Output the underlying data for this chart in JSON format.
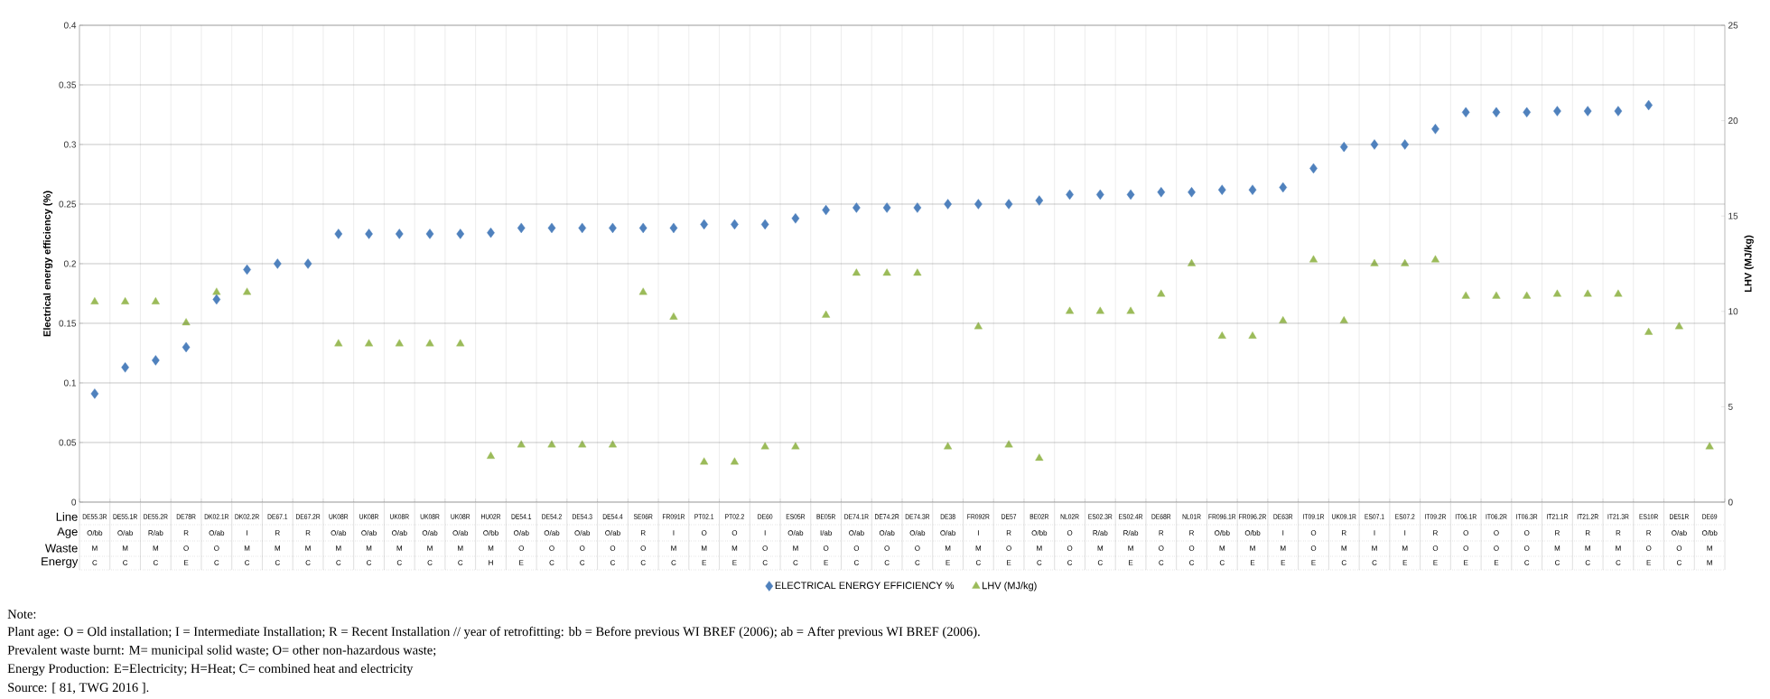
{
  "chart_data": {
    "type": "scatter",
    "categories": [
      "DE55.3R",
      "DE55.1R",
      "DE55.2R",
      "DE78R",
      "DK02.1R",
      "DK02.2R",
      "DE67.1",
      "DE67.2R",
      "UK08R",
      "UK08R",
      "UK08R",
      "UK08R",
      "UK08R",
      "HU02R",
      "DE54.1",
      "DE54.2",
      "DE54.3",
      "DE54.4",
      "SE06R",
      "FR091R",
      "PT02.1",
      "PT02.2",
      "DE60",
      "ES05R",
      "BE05R",
      "DE74.1R",
      "DE74.2R",
      "DE74.3R",
      "DE38",
      "FR092R",
      "DE57",
      "BE02R",
      "NL02R",
      "ES02.3R",
      "ES02.4R",
      "DE68R",
      "NL01R",
      "FR096.1R",
      "FR096.2R",
      "DE63R",
      "IT09.1R",
      "UK09.1R",
      "ES07.1",
      "ES07.2",
      "IT09.2R",
      "IT06.1R",
      "IT06.2R",
      "IT06.3R",
      "IT21.1R",
      "IT21.2R",
      "IT21.3R",
      "ES10R",
      "DE51R",
      "DE69"
    ],
    "series": [
      {
        "name": "ELECTRICAL ENERGY EFFICIENCY %",
        "color": "#4f81bd",
        "marker": "diamond",
        "values": [
          0.091,
          0.113,
          0.119,
          0.13,
          0.17,
          0.195,
          0.2,
          0.2,
          0.225,
          0.225,
          0.225,
          0.225,
          0.225,
          0.226,
          0.23,
          0.23,
          0.23,
          0.23,
          0.23,
          0.23,
          0.233,
          0.233,
          0.233,
          0.238,
          0.245,
          0.247,
          0.247,
          0.247,
          0.25,
          0.25,
          0.25,
          0.253,
          0.258,
          0.258,
          0.258,
          0.26,
          0.26,
          0.262,
          0.262,
          0.264,
          0.28,
          0.298,
          0.3,
          0.3,
          0.313,
          0.327,
          0.327,
          0.327,
          0.328,
          0.328,
          0.328,
          0.333,
          null,
          null
        ]
      },
      {
        "name": "LHV (MJ/kg)",
        "color": "#9bbb59",
        "marker": "triangle",
        "axis": "y2",
        "values": [
          10.5,
          10.5,
          10.5,
          9.4,
          11.0,
          11.0,
          null,
          null,
          8.3,
          8.3,
          8.3,
          8.3,
          8.3,
          2.4,
          3.0,
          3.0,
          3.0,
          3.0,
          11.0,
          9.7,
          2.1,
          2.1,
          2.9,
          2.9,
          9.8,
          12.0,
          12.0,
          12.0,
          2.9,
          9.2,
          3.0,
          2.3,
          10.0,
          10.0,
          10.0,
          10.9,
          12.5,
          8.7,
          8.7,
          9.5,
          12.7,
          9.5,
          12.5,
          12.5,
          12.7,
          10.8,
          10.8,
          10.8,
          10.9,
          10.9,
          10.9,
          8.9,
          9.2,
          2.9
        ]
      }
    ],
    "ylabel": "Electrical energy efficiency (%)",
    "y2label": "LHV (MJ/kg)",
    "ylim": [
      0,
      0.4
    ],
    "yticks": [
      0,
      0.05,
      0.1,
      0.15,
      0.2,
      0.25,
      0.3,
      0.35,
      0.4
    ],
    "y2lim": [
      0,
      25
    ],
    "y2ticks": [
      0,
      5,
      10,
      15,
      20,
      25
    ],
    "grid": true,
    "legend": "bottom",
    "annotations": [
      "Line",
      "Age",
      "Waste",
      "Energy",
      "O/bb",
      "O/ab",
      "R/ab",
      "R",
      "O/ab",
      "I",
      "R",
      "R",
      "O/ab",
      "O/ab",
      "O/ab",
      "O/ab",
      "O/ab",
      "O/bb",
      "O/ab",
      "O/ab",
      "O/ab",
      "O/ab",
      "R",
      "I",
      "O",
      "O",
      "I",
      "O/ab",
      "I/ab",
      "O/ab",
      "O/ab",
      "O/ab",
      "O/ab",
      "I",
      "R",
      "O/bb",
      "O",
      "R/ab",
      "R/ab",
      "R",
      "R",
      "O/bb",
      "O/bb",
      "I",
      "O",
      "R",
      "I",
      "I",
      "R",
      "O",
      "O",
      "O",
      "R",
      "R",
      "R",
      "R",
      "O/ab",
      "O/bb",
      "M",
      "M",
      "M",
      "O",
      "O",
      "M",
      "M",
      "M",
      "M",
      "M",
      "M",
      "M",
      "M",
      "M",
      "O",
      "O",
      "O",
      "O",
      "O",
      "M",
      "M",
      "M",
      "O",
      "M",
      "O",
      "O",
      "O",
      "O",
      "M",
      "M",
      "O",
      "M",
      "O",
      "M",
      "M",
      "O",
      "O",
      "M",
      "M",
      "M",
      "O",
      "M",
      "M",
      "M",
      "O",
      "O",
      "O",
      "O",
      "M",
      "M",
      "M",
      "O",
      "O",
      "M",
      "C",
      "C",
      "C",
      "E",
      "C",
      "C",
      "C",
      "C",
      "C",
      "C",
      "C",
      "C",
      "C",
      "H",
      "E",
      "C",
      "C",
      "C",
      "C",
      "C",
      "E",
      "E",
      "C",
      "C",
      "E",
      "C",
      "C",
      "C",
      "E",
      "C",
      "E",
      "C",
      "C",
      "C",
      "E",
      "C",
      "C",
      "C",
      "E",
      "E",
      "E",
      "C",
      "C",
      "E",
      "E",
      "E",
      "E",
      "C",
      "C",
      "C",
      "C",
      "E",
      "C",
      "M",
      "Note:",
      "Plant age: O = Old installation; I = Intermediate Installation; R = Recent Installation // year of retrofitting: bb = Before previous WI BREF (2006); ab = After previous WI BREF (2006).",
      "Prevalent waste burnt: M= municipal solid waste; O= other non-hazardous waste;",
      "Energy Production: E=Electricity; H=Heat; C= combined heat and electricity",
      "Source: [ 81, TWG 2016 ]."
    ]
  }
}
